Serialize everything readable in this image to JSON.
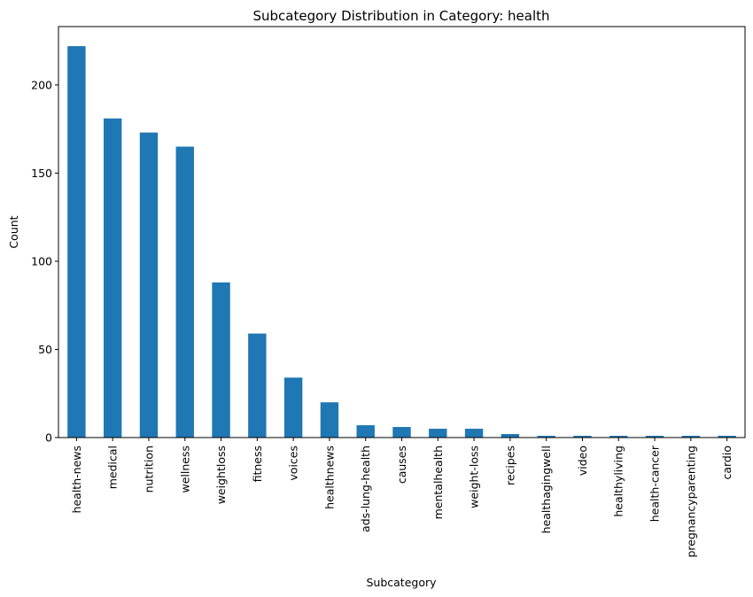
{
  "chart_data": {
    "type": "bar",
    "title": "Subcategory Distribution in Category: health",
    "xlabel": "Subcategory",
    "ylabel": "Count",
    "categories": [
      "health-news",
      "medical",
      "nutrition",
      "wellness",
      "weightloss",
      "fitness",
      "voices",
      "healthnews",
      "ads-lung-health",
      "causes",
      "mentalhealth",
      "weight-loss",
      "recipes",
      "healthagingwell",
      "video",
      "healthyliving",
      "health-cancer",
      "pregnancyparenting",
      "cardio"
    ],
    "values": [
      222,
      181,
      173,
      165,
      88,
      59,
      34,
      20,
      7,
      6,
      5,
      5,
      2,
      1,
      1,
      1,
      1,
      1,
      1
    ],
    "ylim": [
      0,
      233.1
    ],
    "yticks": [
      0,
      50,
      100,
      150,
      200
    ],
    "grid": false,
    "legend": "none",
    "bar_color": "#1f77b4"
  }
}
